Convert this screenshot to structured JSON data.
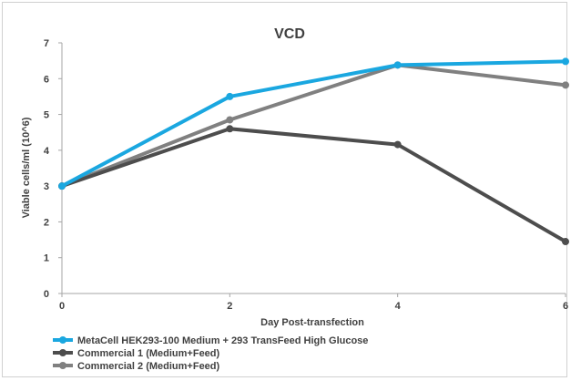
{
  "chart_data": {
    "type": "line",
    "title": "VCD",
    "xlabel": "Day Post-transfection",
    "ylabel": "Viable cells/ml (10^6)",
    "x": [
      0,
      2,
      4,
      6
    ],
    "xlim": [
      0,
      6
    ],
    "ylim": [
      0,
      7
    ],
    "xticks": [
      0,
      2,
      4,
      6
    ],
    "yticks": [
      0,
      1,
      2,
      3,
      4,
      5,
      6,
      7
    ],
    "grid": false,
    "legend_position": "bottom-left",
    "series": [
      {
        "name": "MetaCell HEK293-100 Medium + 293 TransFeed High Glucose",
        "values": [
          3.0,
          5.5,
          6.38,
          6.48
        ],
        "color": "#1aa7e0"
      },
      {
        "name": "Commercial 1 (Medium+Feed)",
        "values": [
          3.0,
          4.6,
          4.16,
          1.45
        ],
        "color": "#4d4d4d"
      },
      {
        "name": "Commercial 2 (Medium+Feed)",
        "values": [
          3.0,
          4.85,
          6.38,
          5.82
        ],
        "color": "#808080"
      }
    ]
  }
}
